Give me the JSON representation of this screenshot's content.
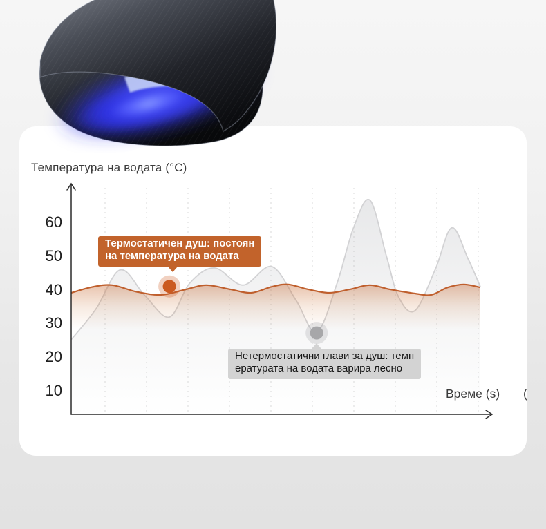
{
  "colors": {
    "background_top": "#f6f6f6",
    "background_bottom": "#e2e2e2",
    "card": "#ffffff",
    "accent_orange": "#c2632b",
    "dot_orange": "#cb5a20",
    "line_orange": "#bf5f2d",
    "line_grey": "#d2d2d4",
    "dot_grey": "#a7a7a9",
    "callout_grey_bg": "#d3d3d3",
    "axis": "#2c2c2c",
    "gridline": "#e4e4e4",
    "device_body": "#16181e",
    "device_glow": "#3742f5",
    "device_sliver": "#bdc9f6"
  },
  "chart": {
    "title": "Температура на водата (°C)",
    "x_label": "Време (s)",
    "x_label_clipped": "(",
    "callouts": {
      "thermo": {
        "line1": "Термостатичен душ: постоян",
        "line2": "на температура на водата"
      },
      "nonthermo": {
        "line1": "Нетермостатични глави за душ: темп",
        "line2": "ературата на водата варира лесно"
      }
    }
  },
  "chart_data": {
    "type": "line",
    "title": "Температура на водата (°C)",
    "xlabel": "Време (s)",
    "ylabel": "Температура на водата (°C)",
    "x_range": [
      0,
      100
    ],
    "ylim": [
      5,
      70
    ],
    "y_ticks": [
      10,
      20,
      30,
      40,
      50,
      60
    ],
    "grid": "vertical-dashed",
    "legend": "none",
    "series": [
      {
        "name": "Термостатичен душ (постоянна температура на водата)",
        "color": "#bf5f2d",
        "fill": "orange-fade",
        "points": [
          [
            0,
            39.1
          ],
          [
            5,
            40.8
          ],
          [
            10,
            41.4
          ],
          [
            16,
            39.4
          ],
          [
            22,
            38.5
          ],
          [
            28,
            40.1
          ],
          [
            33,
            41.4
          ],
          [
            39,
            40.1
          ],
          [
            44,
            39.1
          ],
          [
            49,
            40.9
          ],
          [
            53,
            41.6
          ],
          [
            58,
            40.1
          ],
          [
            63,
            39.1
          ],
          [
            68,
            40.1
          ],
          [
            73,
            41.4
          ],
          [
            78,
            40.1
          ],
          [
            84,
            38.9
          ],
          [
            88,
            38.5
          ],
          [
            92,
            40.7
          ],
          [
            96,
            41.6
          ],
          [
            100,
            40.7
          ]
        ]
      },
      {
        "name": "Нетермостатични глави за душ (температурата варира)",
        "color": "#d2d2d4",
        "fill": "grey-fade",
        "points": [
          [
            0,
            25.2
          ],
          [
            6,
            34.2
          ],
          [
            12,
            45.9
          ],
          [
            18,
            38.3
          ],
          [
            24,
            31.9
          ],
          [
            29,
            42.0
          ],
          [
            35,
            46.5
          ],
          [
            42,
            41.4
          ],
          [
            49,
            46.9
          ],
          [
            55,
            36.8
          ],
          [
            60,
            27.4
          ],
          [
            65,
            42.0
          ],
          [
            69,
            58.4
          ],
          [
            73,
            66.6
          ],
          [
            77,
            50.2
          ],
          [
            80,
            37.9
          ],
          [
            84,
            33.8
          ],
          [
            89,
            46.1
          ],
          [
            93,
            58.4
          ],
          [
            97,
            49.2
          ],
          [
            100,
            40.9
          ]
        ]
      }
    ],
    "annotations": [
      {
        "target_series": 0,
        "style": "orange",
        "text": "Термостатичен душ: постоянна температура на водата",
        "marker": {
          "x": 24,
          "y": 41
        }
      },
      {
        "target_series": 1,
        "style": "grey",
        "text": "Нетермостатични глави за душ: температурата на водата варира лесно",
        "marker": {
          "x": 60,
          "y": 27.2
        }
      }
    ]
  }
}
